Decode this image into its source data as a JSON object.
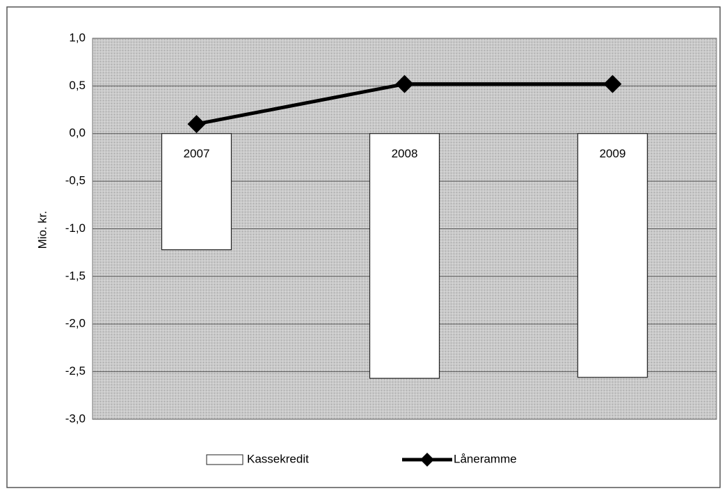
{
  "chart_data": {
    "type": "bar",
    "y_label": "Mio. kr.",
    "categories": [
      "2007",
      "2008",
      "2009"
    ],
    "series": [
      {
        "name": "Kassekredit",
        "type": "bar",
        "color": "#ffffff",
        "values": [
          -1.22,
          -2.57,
          -2.56
        ]
      },
      {
        "name": "Låneramme",
        "type": "line",
        "color": "#000000",
        "values": [
          0.1,
          0.52,
          0.52
        ]
      }
    ],
    "ylim": [
      -3,
      1
    ],
    "yticks": [
      {
        "value": 1,
        "label": "1,0"
      },
      {
        "value": 0.5,
        "label": "0,5"
      },
      {
        "value": 0,
        "label": "0,0"
      },
      {
        "value": -0.5,
        "label": "-0,5"
      },
      {
        "value": -1,
        "label": "-1,0"
      },
      {
        "value": -1.5,
        "label": "-1,5"
      },
      {
        "value": -2,
        "label": "-2,0"
      },
      {
        "value": -2.5,
        "label": "-2,5"
      },
      {
        "value": -3,
        "label": "-3,0"
      }
    ],
    "grid": true,
    "legend": "bottom"
  }
}
